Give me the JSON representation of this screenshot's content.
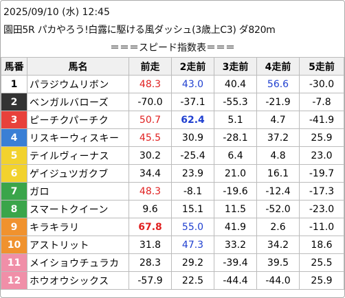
{
  "header": {
    "date": "2025/09/10 (水) 12:45",
    "race": "園田5R パカやろう!白露に駆ける風ダッシュ(3歳上C3) ダ820m"
  },
  "table": {
    "title": "＝＝＝スピード指数表＝＝＝",
    "columns": [
      "馬番",
      "馬名",
      "前走",
      "2走前",
      "3走前",
      "4走前",
      "5走前"
    ],
    "rows": [
      {
        "no": "1",
        "frame": "#ffffff",
        "text": "#000000",
        "name": "パラジウムリボン",
        "scores": [
          {
            "text": "48.3",
            "color": "#e02020"
          },
          {
            "text": "43.0",
            "color": "#2040d0"
          },
          "40.4",
          {
            "text": "56.6",
            "color": "#2040d0"
          },
          "-30.0"
        ]
      },
      {
        "no": "2",
        "frame": "#333333",
        "text": "#ffffff",
        "name": "ベンガルバローズ",
        "scores": [
          "-70.0",
          "-37.1",
          "-55.3",
          "-21.9",
          "-7.8"
        ]
      },
      {
        "no": "3",
        "frame": "#e8413b",
        "text": "#ffffff",
        "name": "ピーチクパーチク",
        "scores": [
          {
            "text": "50.7",
            "color": "#e02020"
          },
          {
            "text": "62.4",
            "color": "#2040d0",
            "bold": true
          },
          "5.1",
          "4.7",
          "-41.9"
        ]
      },
      {
        "no": "4",
        "frame": "#3a7fd5",
        "text": "#ffffff",
        "name": "リスキーウィスキー",
        "scores": [
          {
            "text": "45.5",
            "color": "#e02020"
          },
          "30.9",
          "-28.1",
          "37.2",
          "25.9"
        ]
      },
      {
        "no": "5",
        "frame": "#f2d22e",
        "text": "#ffffff",
        "name": "テイルヴィーナス",
        "scores": [
          "30.2",
          "-25.4",
          "6.4",
          "4.8",
          "23.0"
        ]
      },
      {
        "no": "6",
        "frame": "#f2d22e",
        "text": "#ffffff",
        "name": "ゲイジュツガクブ",
        "scores": [
          "34.4",
          "23.9",
          "21.0",
          "16.1",
          "-19.7"
        ]
      },
      {
        "no": "7",
        "frame": "#3aa54a",
        "text": "#ffffff",
        "name": "ガロ",
        "scores": [
          {
            "text": "48.3",
            "color": "#e02020"
          },
          "-8.1",
          "-19.6",
          "-12.4",
          "-17.3"
        ]
      },
      {
        "no": "8",
        "frame": "#3aa54a",
        "text": "#ffffff",
        "name": "スマートクイーン",
        "scores": [
          "9.6",
          "15.1",
          "11.5",
          "-52.0",
          "-23.0"
        ]
      },
      {
        "no": "9",
        "frame": "#f0922e",
        "text": "#ffffff",
        "name": "キラキラリ",
        "scores": [
          {
            "text": "67.8",
            "color": "#e02020",
            "bold": true
          },
          {
            "text": "55.0",
            "color": "#2040d0"
          },
          "41.9",
          "2.6",
          "-11.0"
        ]
      },
      {
        "no": "10",
        "frame": "#f0922e",
        "text": "#ffffff",
        "name": "アストリット",
        "scores": [
          "31.8",
          {
            "text": "47.3",
            "color": "#2040d0"
          },
          "33.2",
          "34.2",
          "18.6"
        ]
      },
      {
        "no": "11",
        "frame": "#f08fa8",
        "text": "#ffffff",
        "name": "メイショウチュラカ",
        "scores": [
          "28.3",
          "29.2",
          "-39.4",
          "39.5",
          "25.5"
        ]
      },
      {
        "no": "12",
        "frame": "#f08fa8",
        "text": "#ffffff",
        "name": "ホウオウシックス",
        "scores": [
          "-57.9",
          "22.5",
          "-44.4",
          "-44.0",
          "25.9"
        ]
      }
    ]
  }
}
